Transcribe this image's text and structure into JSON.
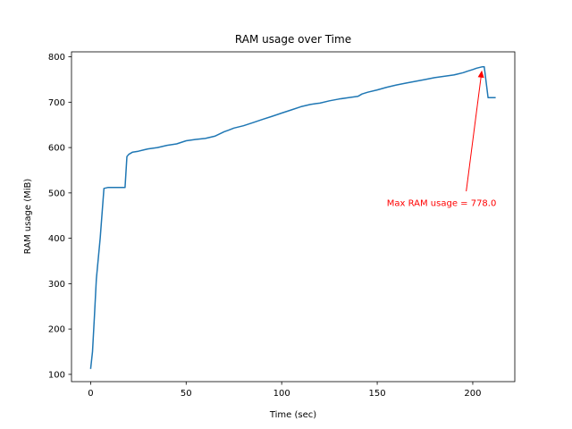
{
  "chart_data": {
    "type": "line",
    "title": "RAM usage over Time",
    "xlabel": "Time (sec)",
    "ylabel": "RAM usage (MiB)",
    "xlim": [
      -10,
      222
    ],
    "ylim": [
      84,
      811
    ],
    "x_ticks": [
      0,
      50,
      100,
      150,
      200
    ],
    "y_ticks": [
      100,
      200,
      300,
      400,
      500,
      600,
      700,
      800
    ],
    "grid": false,
    "legend": "none",
    "series": [
      {
        "color": "#1f77b4",
        "x": [
          0,
          1,
          2,
          3,
          5,
          7,
          9,
          12,
          15,
          18,
          19,
          20,
          22,
          25,
          28,
          30,
          35,
          40,
          45,
          50,
          55,
          60,
          65,
          70,
          72,
          75,
          80,
          85,
          90,
          95,
          100,
          105,
          110,
          115,
          118,
          120,
          125,
          130,
          135,
          140,
          142,
          145,
          150,
          155,
          160,
          165,
          170,
          175,
          180,
          185,
          190,
          192,
          195,
          197,
          200,
          202,
          205,
          206,
          208,
          210,
          212
        ],
        "y": [
          112,
          150,
          230,
          310,
          400,
          510,
          512,
          512,
          512,
          512,
          580,
          585,
          590,
          592,
          595,
          597,
          600,
          605,
          608,
          615,
          618,
          620,
          625,
          635,
          638,
          643,
          648,
          655,
          662,
          669,
          676,
          683,
          690,
          695,
          697,
          698,
          703,
          707,
          710,
          713,
          718,
          722,
          727,
          733,
          738,
          742,
          746,
          750,
          754,
          757,
          760,
          762,
          765,
          768,
          772,
          775,
          778,
          778,
          710,
          710,
          710
        ]
      }
    ],
    "annotation": {
      "text": "Max RAM usage = 778.0",
      "color": "#ff0000",
      "point": [
        205,
        778
      ],
      "text_anchor": [
        155,
        478
      ]
    }
  }
}
